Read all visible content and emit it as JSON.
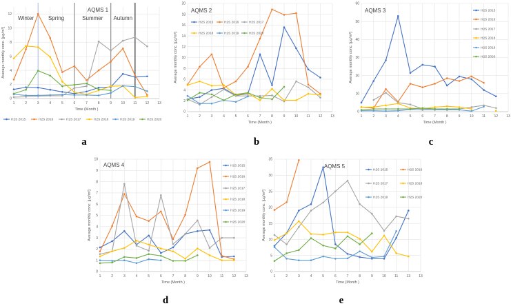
{
  "series_colors": {
    "H2S 2015": "#4472C4",
    "H2S 2016": "#ED7D31",
    "H2S 2017": "#A5A5A5",
    "H2S 2018": "#FFC000",
    "H2S 2019": "#5B9BD5",
    "H2S 2020": "#70AD47"
  },
  "chart_data": [
    {
      "type": "line",
      "panel": "a",
      "title": "AQMS 1",
      "xlabel": "Time (Month )",
      "ylabel": "Average monthly conc. [µg/m³]",
      "ylim": [
        0,
        13
      ],
      "yticks": [
        0,
        2,
        4,
        6,
        8,
        10,
        12
      ],
      "xticks": [
        "1",
        "2",
        "3",
        "4",
        "5",
        "6",
        "7",
        "8",
        "9",
        "10",
        "11",
        "12",
        "13"
      ],
      "grid": true,
      "legend": "bottom",
      "seasons": [
        "Winter",
        "Spring",
        "Summer",
        "Autumn"
      ],
      "season_dividers": [
        3,
        6,
        9,
        11
      ],
      "x": [
        1,
        2,
        3,
        4,
        5,
        6,
        7,
        8,
        9,
        10,
        11,
        12
      ],
      "series": [
        {
          "name": "H2S 2015",
          "values": [
            1.3,
            1.6,
            1.55,
            1.25,
            0.95,
            0.7,
            1.0,
            1.55,
            1.65,
            3.5,
            3.05,
            3.15
          ]
        },
        {
          "name": "H2S 2016",
          "values": [
            2.7,
            7.0,
            12.0,
            8.6,
            3.75,
            4.6,
            2.6,
            4.0,
            5.25,
            7.1,
            3.3,
            0.5
          ]
        },
        {
          "name": "H2S 2017",
          "values": [
            0.2,
            0.25,
            0.35,
            0.4,
            0.4,
            1.5,
            1.75,
            8.1,
            6.8,
            8.2,
            8.7,
            7.4
          ]
        },
        {
          "name": "H2S 2018",
          "values": [
            5.7,
            7.45,
            7.3,
            5.9,
            2.4,
            0.9,
            0.6,
            1.15,
            1.75,
            1.8,
            0.15,
            0.3
          ]
        },
        {
          "name": "H2S 2019",
          "values": [
            0.6,
            0.45,
            0.45,
            0.5,
            0.55,
            0.5,
            0.5,
            0.45,
            0.8,
            1.8,
            1.7,
            1.05
          ]
        },
        {
          "name": "H2S 2020",
          "values": [
            0.7,
            1.25,
            3.95,
            3.25,
            1.75,
            1.95,
            2.15,
            1.3,
            1.15,
            null,
            null,
            null
          ]
        }
      ]
    },
    {
      "type": "line",
      "panel": "b",
      "title": "AQMS 2",
      "xlabel": "Time (Month )",
      "ylabel": "Average monthly conc. [µg/m³]",
      "ylim": [
        0,
        20
      ],
      "yticks": [
        0,
        2,
        4,
        6,
        8,
        10,
        12,
        14,
        16,
        18,
        20
      ],
      "xticks": [
        "1",
        "2",
        "3",
        "4",
        "5",
        "6",
        "7",
        "8",
        "9",
        "10",
        "11",
        "12",
        "13"
      ],
      "grid": true,
      "legend": "top-left",
      "x": [
        1,
        2,
        3,
        4,
        5,
        6,
        7,
        8,
        9,
        10,
        11,
        12
      ],
      "series": [
        {
          "name": "H2S 2015",
          "values": [
            2.3,
            2.7,
            4.0,
            4.3,
            3.0,
            3.3,
            10.6,
            4.9,
            15.6,
            11.7,
            7.8,
            6.3
          ]
        },
        {
          "name": "H2S 2016",
          "values": [
            5.0,
            8.3,
            10.6,
            4.4,
            5.6,
            8.3,
            13.5,
            18.9,
            17.9,
            18.2,
            5.0,
            3.3
          ]
        },
        {
          "name": "H2S 2017",
          "values": [
            2.3,
            1.3,
            2.7,
            4.1,
            2.9,
            2.9,
            2.9,
            3.0,
            1.9,
            5.6,
            4.5,
            2.6
          ]
        },
        {
          "name": "H2S 2018",
          "values": [
            4.9,
            5.6,
            4.8,
            4.9,
            3.1,
            3.4,
            2.1,
            4.2,
            2.1,
            2.1,
            3.3,
            3.1
          ]
        },
        {
          "name": "H2S 2019",
          "values": [
            2.9,
            1.5,
            1.5,
            2.1,
            1.8,
            2.8,
            null,
            null,
            null,
            null,
            null,
            null
          ]
        },
        {
          "name": "H2S 2020",
          "values": [
            2.1,
            3.5,
            3.2,
            2.1,
            3.2,
            3.5,
            2.6,
            2.3,
            4.6,
            null,
            null,
            null
          ]
        }
      ]
    },
    {
      "type": "line",
      "panel": "c",
      "title": "AQMS 3",
      "xlabel": "Time (Month )",
      "ylabel": "Average monthly conc. [µg/m³]",
      "ylim": [
        0,
        60
      ],
      "yticks": [
        0,
        10,
        20,
        30,
        40,
        50,
        60
      ],
      "xticks": [
        "1",
        "2",
        "3",
        "4",
        "5",
        "6",
        "7",
        "8",
        "9",
        "10",
        "11",
        "12",
        "13"
      ],
      "grid": true,
      "legend": "right",
      "x": [
        1,
        2,
        3,
        4,
        5,
        6,
        7,
        8,
        9,
        10,
        11,
        12
      ],
      "series": [
        {
          "name": "H2S 2015",
          "values": [
            5,
            17,
            28.5,
            53,
            21.5,
            26,
            25,
            14.5,
            19.5,
            18,
            12,
            8.5
          ]
        },
        {
          "name": "H2S 2016",
          "values": [
            2.5,
            2,
            12.5,
            5.5,
            15.5,
            13.5,
            15.5,
            18.5,
            17,
            19.5,
            16,
            null
          ]
        },
        {
          "name": "H2S 2017",
          "values": [
            null,
            6.5,
            10.5,
            5,
            4,
            1.5,
            1.5,
            1,
            1.5,
            2.5,
            3.5,
            2
          ]
        },
        {
          "name": "H2S 2018",
          "values": [
            2.5,
            2.5,
            3.5,
            4.5,
            2,
            1.5,
            2.5,
            3,
            2.5,
            1.5,
            null,
            0.5
          ]
        },
        {
          "name": "H2S 2019",
          "values": [
            0.5,
            0.5,
            0.3,
            0.5,
            1.2,
            1,
            1,
            1,
            1,
            0.3,
            2.8,
            null
          ]
        },
        {
          "name": "H2S 2020",
          "values": [
            1,
            1.5,
            1.5,
            1.5,
            1.5,
            2,
            1.5,
            1.5,
            1.5,
            null,
            null,
            null
          ]
        }
      ]
    },
    {
      "type": "line",
      "panel": "d",
      "title": "AQMS 4",
      "xlabel": "Time (Month )",
      "ylabel": "Average monthly conc. [µg/m³]",
      "ylim": [
        0,
        10
      ],
      "yticks": [
        0,
        1,
        2,
        3,
        4,
        5,
        6,
        7,
        8,
        9,
        10
      ],
      "xticks": [
        "1",
        "2",
        "3",
        "4",
        "5",
        "6",
        "7",
        "8",
        "9",
        "10",
        "11",
        "12",
        "13"
      ],
      "grid": true,
      "legend": "right",
      "x": [
        1,
        2,
        3,
        4,
        5,
        6,
        7,
        8,
        9,
        10,
        11,
        12
      ],
      "series": [
        {
          "name": "H2S 2015",
          "values": [
            2.15,
            2.7,
            3.6,
            2.4,
            3.2,
            1.65,
            2.15,
            3.35,
            3.6,
            3.7,
            1.3,
            1.35
          ]
        },
        {
          "name": "H2S 2016",
          "values": [
            1.8,
            4.05,
            6.9,
            4.9,
            4.5,
            5.35,
            2.9,
            5.05,
            9.2,
            9.75,
            1.4,
            1.1
          ]
        },
        {
          "name": "H2S 2017",
          "values": [
            1.55,
            1.8,
            7.8,
            2.3,
            1.85,
            6.8,
            2.45,
            3.35,
            4.55,
            2.1,
            3.0,
            3.0
          ]
        },
        {
          "name": "H2S 2018",
          "values": [
            1.35,
            1.8,
            2.1,
            2.75,
            2.4,
            2.05,
            1.8,
            1.15,
            2.05,
            1.45,
            1.0,
            1.0
          ]
        },
        {
          "name": "H2S 2019",
          "values": [
            1.0,
            0.95,
            1.0,
            0.75,
            1.1,
            1.0,
            null,
            null,
            null,
            null,
            null,
            null
          ]
        },
        {
          "name": "H2S 2020",
          "values": [
            0.75,
            0.8,
            1.3,
            1.2,
            1.55,
            1.4,
            0.95,
            0.95,
            1.45,
            null,
            null,
            null
          ]
        }
      ]
    },
    {
      "type": "line",
      "panel": "e",
      "title": "AQMS 5",
      "xlabel": "Time (Month )",
      "ylabel": "Average monthly conc. [µg/m³]",
      "ylim": [
        0,
        35
      ],
      "yticks": [
        0,
        5,
        10,
        15,
        20,
        25,
        30,
        35
      ],
      "xticks": [
        "1",
        "2",
        "3",
        "4",
        "5",
        "6",
        "7",
        "8",
        "9",
        "10",
        "11",
        "13",
        "13"
      ],
      "grid": true,
      "legend": "top-right",
      "x": [
        1,
        2,
        3,
        4,
        5,
        6,
        7,
        8,
        9,
        10,
        11,
        12
      ],
      "series": [
        {
          "name": "H2S 2015",
          "values": [
            8,
            12,
            19,
            21,
            32.5,
            8.5,
            5.5,
            4.5,
            4,
            4,
            10.5,
            19
          ]
        },
        {
          "name": "H2S 2016",
          "values": [
            19.2,
            21.6,
            34.7,
            null,
            null,
            null,
            null,
            null,
            null,
            null,
            null,
            null
          ]
        },
        {
          "name": "H2S 2017",
          "values": [
            11.4,
            8.5,
            13.9,
            19,
            21.5,
            25,
            28.3,
            21,
            18,
            12.7,
            17.2,
            16.5
          ]
        },
        {
          "name": "H2S 2018",
          "values": [
            9.8,
            11.9,
            15.7,
            11.7,
            11.5,
            12.2,
            12.2,
            10.2,
            6.2,
            11.2,
            5.7,
            4.7
          ]
        },
        {
          "name": "H2S 2019",
          "values": [
            7.6,
            4,
            3.5,
            3.5,
            4.7,
            4,
            4.1,
            6.3,
            4.4,
            4.7,
            12.6,
            null
          ]
        },
        {
          "name": "H2S 2020",
          "values": [
            3.3,
            5.7,
            6.7,
            10.4,
            8.1,
            7.2,
            11,
            8.5,
            11.9,
            null,
            null,
            null
          ]
        }
      ]
    }
  ]
}
